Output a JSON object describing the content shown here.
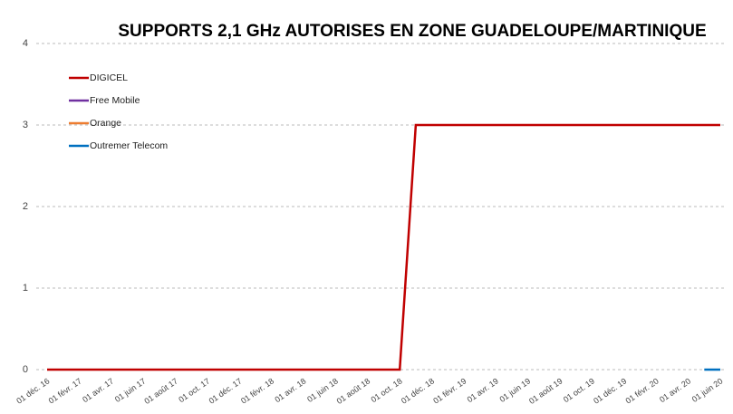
{
  "chart_data": {
    "type": "line",
    "title": "SUPPORTS 2,1 GHz AUTORISES EN ZONE GUADELOUPE/MARTINIQUE",
    "categories": [
      "01 déc. 16",
      null,
      "01 févr. 17",
      null,
      "01 avr. 17",
      null,
      "01 juin 17",
      null,
      "01 août 17",
      null,
      "01 oct. 17",
      null,
      "01 déc. 17",
      null,
      "01 févr. 18",
      null,
      "01 avr. 18",
      null,
      "01 juin 18",
      null,
      "01 août 18",
      null,
      "01 oct. 18",
      null,
      "01 déc. 18",
      null,
      "01 févr. 19",
      null,
      "01 avr. 19",
      null,
      "01 juin 19",
      null,
      "01 août 19",
      null,
      "01 oct. 19",
      null,
      "01 déc. 19",
      null,
      "01 févr. 20",
      null,
      "01 avr. 20",
      null,
      "01 juin 20"
    ],
    "series": [
      {
        "name": "DIGICEL",
        "color": "#c00000",
        "values": [
          0,
          0,
          0,
          0,
          0,
          0,
          0,
          0,
          0,
          0,
          0,
          0,
          0,
          0,
          0,
          0,
          0,
          0,
          0,
          0,
          0,
          0,
          0,
          3,
          3,
          3,
          3,
          3,
          3,
          3,
          3,
          3,
          3,
          3,
          3,
          3,
          3,
          3,
          3,
          3,
          3,
          3,
          3
        ]
      },
      {
        "name": "Free Mobile",
        "color": "#7030a0",
        "values": [
          null,
          null,
          null,
          null,
          null,
          null,
          null,
          null,
          null,
          null,
          null,
          null,
          null,
          null,
          null,
          null,
          null,
          null,
          null,
          null,
          null,
          null,
          null,
          null,
          null,
          null,
          null,
          null,
          null,
          null,
          null,
          null,
          null,
          null,
          null,
          null,
          null,
          null,
          null,
          null,
          null,
          null,
          null
        ]
      },
      {
        "name": "Orange",
        "color": "#ed7d31",
        "values": [
          null,
          null,
          null,
          null,
          null,
          null,
          null,
          null,
          null,
          null,
          null,
          null,
          null,
          null,
          null,
          null,
          null,
          null,
          null,
          null,
          null,
          null,
          null,
          null,
          null,
          null,
          null,
          null,
          null,
          null,
          null,
          null,
          null,
          null,
          null,
          null,
          null,
          null,
          null,
          null,
          null,
          null,
          null
        ]
      },
      {
        "name": "Outremer Telecom",
        "color": "#0070c0",
        "values": [
          null,
          null,
          null,
          null,
          null,
          null,
          null,
          null,
          null,
          null,
          null,
          null,
          null,
          null,
          null,
          null,
          null,
          null,
          null,
          null,
          null,
          null,
          null,
          null,
          null,
          null,
          null,
          null,
          null,
          null,
          null,
          null,
          null,
          null,
          null,
          null,
          null,
          null,
          null,
          null,
          null,
          0,
          0
        ]
      }
    ],
    "ylim": [
      0,
      4
    ],
    "yticks": [
      0,
      1,
      2,
      3,
      4
    ],
    "grid": true
  }
}
